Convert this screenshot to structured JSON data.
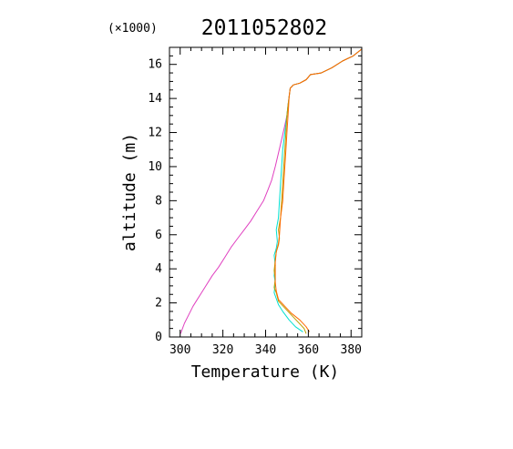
{
  "chart_data": {
    "type": "line",
    "title": "2011052802",
    "multiplier_label": "(×1000)",
    "xlabel": "Temperature (K)",
    "ylabel": "altitude (m)",
    "xlim": [
      295,
      385
    ],
    "ylim": [
      0,
      17
    ],
    "xticks": [
      300,
      320,
      340,
      360,
      380
    ],
    "yticks": [
      0,
      2,
      4,
      6,
      8,
      10,
      12,
      14,
      16
    ],
    "grid": false,
    "series": [
      {
        "color": "#e040c0",
        "points": [
          [
            300.2,
            0.2
          ],
          [
            302,
            0.8
          ],
          [
            304,
            1.3
          ],
          [
            306,
            1.8
          ],
          [
            308,
            2.2
          ],
          [
            310,
            2.6
          ],
          [
            312,
            3.0
          ],
          [
            315,
            3.6
          ],
          [
            318,
            4.1
          ],
          [
            321,
            4.7
          ],
          [
            324,
            5.3
          ],
          [
            327,
            5.8
          ],
          [
            330,
            6.3
          ],
          [
            333,
            6.8
          ],
          [
            336,
            7.4
          ],
          [
            339,
            8.0
          ],
          [
            341,
            8.6
          ],
          [
            342.8,
            9.2
          ],
          [
            344.5,
            10.0
          ],
          [
            346,
            10.8
          ],
          [
            347.5,
            11.6
          ],
          [
            348.8,
            12.3
          ],
          [
            350,
            13.0
          ],
          [
            350.5,
            13.6
          ],
          [
            351,
            14.1
          ],
          [
            351.5,
            14.6
          ],
          [
            353,
            14.8
          ],
          [
            356,
            14.9
          ],
          [
            359,
            15.1
          ],
          [
            361,
            15.4
          ],
          [
            366,
            15.5
          ],
          [
            371,
            15.8
          ],
          [
            376,
            16.2
          ],
          [
            381,
            16.5
          ],
          [
            385,
            16.9
          ]
        ]
      },
      {
        "color": "#00e0d0",
        "points": [
          [
            357.5,
            0.3
          ],
          [
            354,
            0.6
          ],
          [
            351,
            1.0
          ],
          [
            348,
            1.5
          ],
          [
            346,
            1.9
          ],
          [
            344,
            2.6
          ],
          [
            344.5,
            3.2
          ],
          [
            344,
            3.6
          ],
          [
            344.5,
            4.2
          ],
          [
            344,
            4.8
          ],
          [
            345,
            5.2
          ],
          [
            345.5,
            5.6
          ],
          [
            345,
            6.3
          ],
          [
            346,
            7.0
          ],
          [
            346.5,
            8.0
          ],
          [
            347,
            9.0
          ],
          [
            347.5,
            10.0
          ],
          [
            348,
            11.0
          ],
          [
            349,
            12.0
          ],
          [
            350,
            13.0
          ],
          [
            350.5,
            13.6
          ],
          [
            351,
            14.1
          ],
          [
            351.5,
            14.6
          ],
          [
            353,
            14.8
          ],
          [
            356,
            14.9
          ],
          [
            359,
            15.1
          ],
          [
            361,
            15.4
          ],
          [
            366,
            15.5
          ],
          [
            371,
            15.8
          ],
          [
            376,
            16.2
          ],
          [
            381,
            16.5
          ],
          [
            385,
            16.9
          ]
        ]
      },
      {
        "color": "#b8a000",
        "points": [
          [
            359,
            0.2
          ],
          [
            358,
            0.5
          ],
          [
            355,
            0.9
          ],
          [
            352,
            1.3
          ],
          [
            349,
            1.7
          ],
          [
            346,
            2.1
          ],
          [
            345,
            2.6
          ],
          [
            344,
            2.9
          ],
          [
            344.5,
            3.4
          ],
          [
            344,
            3.9
          ],
          [
            344.5,
            4.5
          ],
          [
            345,
            5.0
          ],
          [
            346,
            5.4
          ],
          [
            346.5,
            5.8
          ],
          [
            346,
            6.3
          ],
          [
            347,
            7.0
          ],
          [
            347.5,
            8.0
          ],
          [
            348,
            9.0
          ],
          [
            348.5,
            10.0
          ],
          [
            349,
            11.0
          ],
          [
            349.5,
            12.0
          ],
          [
            350,
            13.0
          ],
          [
            350.5,
            13.6
          ],
          [
            351,
            14.1
          ],
          [
            351.5,
            14.6
          ],
          [
            353,
            14.8
          ],
          [
            356,
            14.9
          ],
          [
            359,
            15.1
          ],
          [
            361,
            15.4
          ],
          [
            366,
            15.5
          ],
          [
            371,
            15.8
          ],
          [
            376,
            16.2
          ],
          [
            381,
            16.5
          ],
          [
            385,
            16.9
          ]
        ]
      },
      {
        "color": "#ff6a00",
        "points": [
          [
            360.5,
            0.3
          ],
          [
            359,
            0.6
          ],
          [
            356,
            1.0
          ],
          [
            352,
            1.4
          ],
          [
            349,
            1.8
          ],
          [
            346,
            2.2
          ],
          [
            345,
            2.7
          ],
          [
            344.5,
            3.2
          ],
          [
            344.5,
            3.8
          ],
          [
            344.5,
            4.4
          ],
          [
            345,
            5.0
          ],
          [
            346,
            5.5
          ],
          [
            346.5,
            6.0
          ],
          [
            347,
            7.0
          ],
          [
            348,
            8.0
          ],
          [
            348.5,
            9.0
          ],
          [
            349,
            10.0
          ],
          [
            349.5,
            11.0
          ],
          [
            350,
            12.0
          ],
          [
            350.5,
            13.0
          ],
          [
            350.8,
            13.6
          ],
          [
            351,
            14.1
          ],
          [
            351.5,
            14.6
          ],
          [
            353,
            14.8
          ],
          [
            356,
            14.9
          ],
          [
            359,
            15.1
          ],
          [
            361,
            15.4
          ],
          [
            366,
            15.5
          ],
          [
            371,
            15.8
          ],
          [
            376,
            16.2
          ],
          [
            381,
            16.5
          ],
          [
            385,
            16.9
          ]
        ]
      }
    ]
  }
}
